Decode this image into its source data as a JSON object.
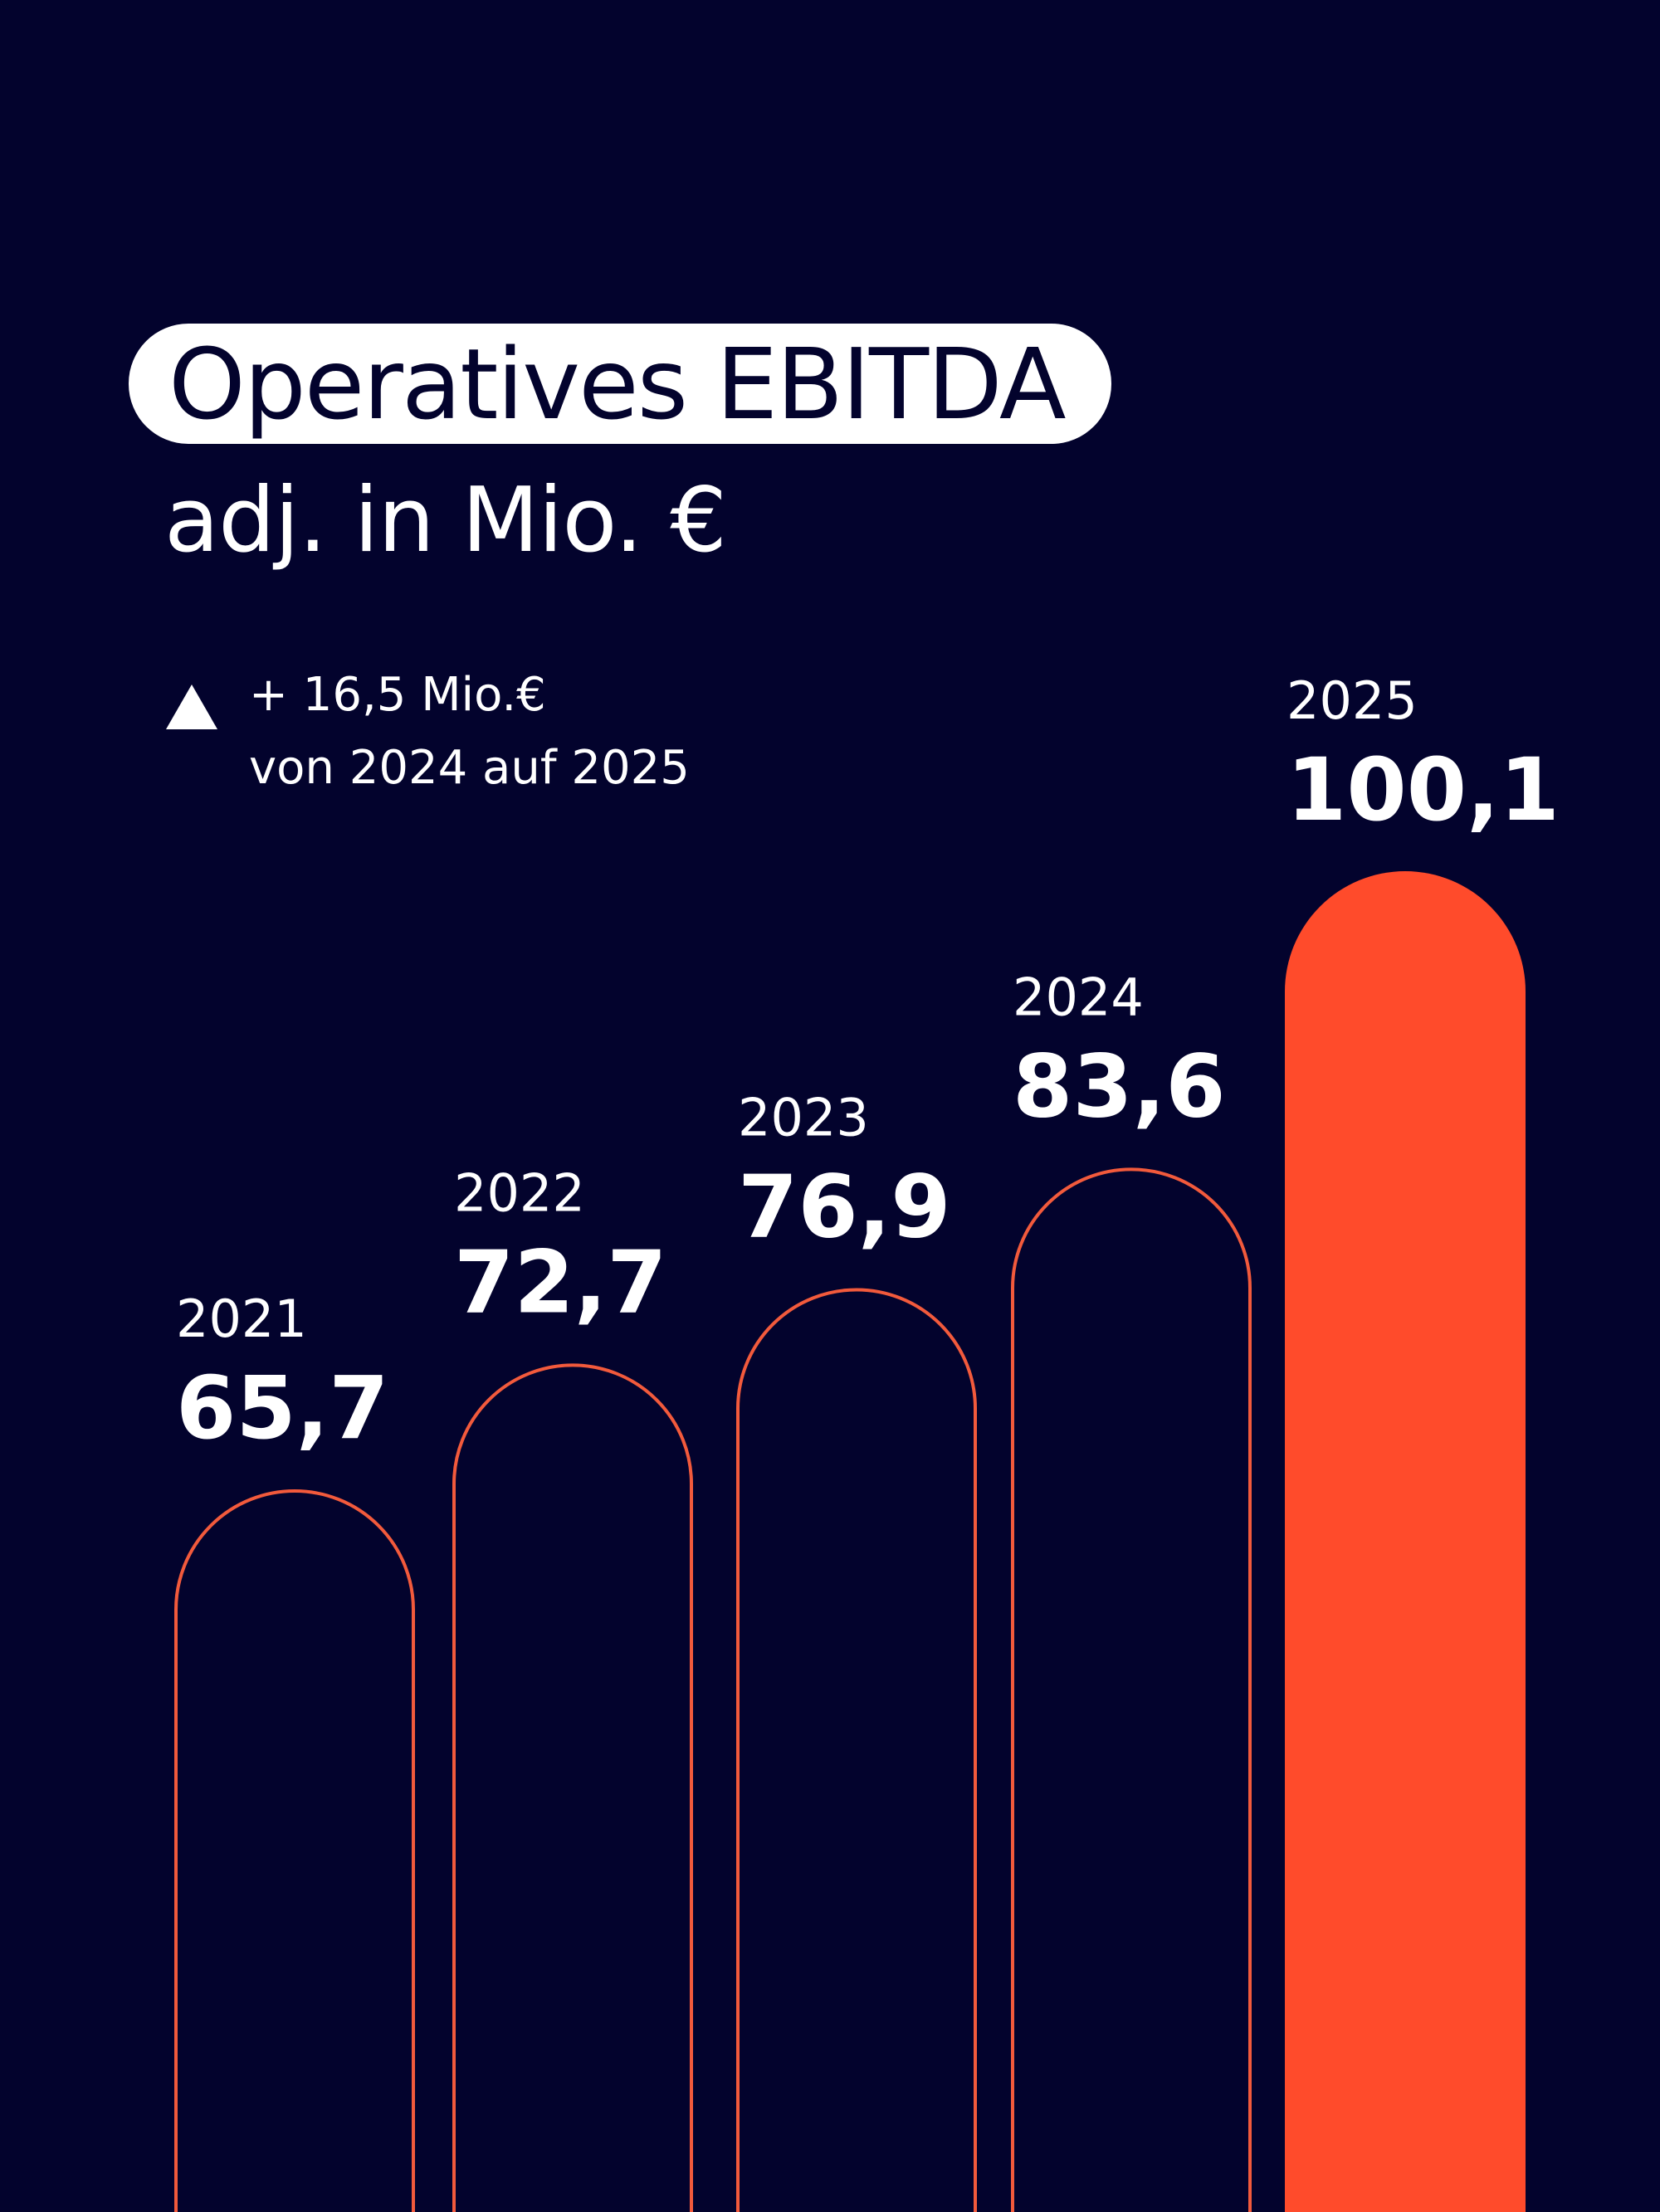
{
  "colors": {
    "background": "#03032d",
    "outline": "#f25a3c",
    "highlight": "#ff4b2b",
    "text": "#ffffff"
  },
  "header": {
    "title": "Operatives EBITDA",
    "subtitle": "adj. in Mio. €"
  },
  "delta": {
    "icon": "triangle-up-icon",
    "line1": "+ 16,5 Mio.€",
    "line2": "von 2024 auf 2025"
  },
  "chart_data": {
    "type": "bar",
    "categories": [
      "2021",
      "2022",
      "2023",
      "2024",
      "2025"
    ],
    "values": [
      65.7,
      72.7,
      76.9,
      83.6,
      100.1
    ],
    "value_labels": [
      "65,7",
      "72,7",
      "76,9",
      "83,6",
      "100,1"
    ],
    "highlight_index": 4,
    "title": "Operatives EBITDA",
    "subtitle": "adj. in Mio. €",
    "grid": false,
    "legend": "none"
  }
}
